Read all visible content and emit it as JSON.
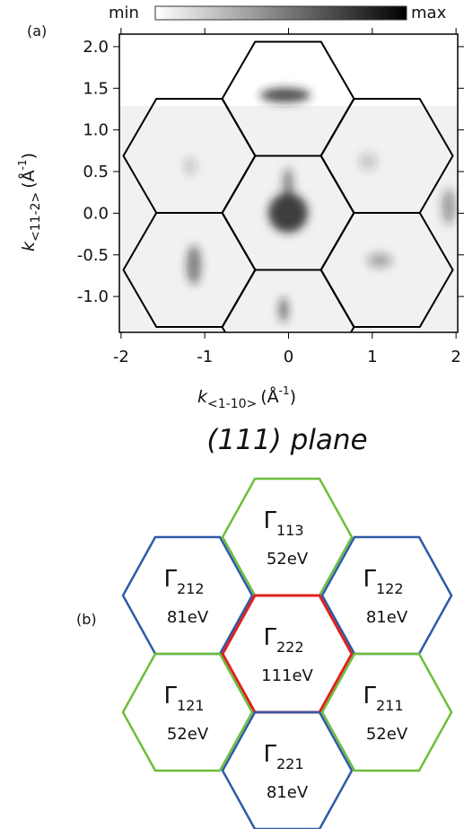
{
  "chart_data": {
    "type": "heatmap",
    "panel_label": "(a)",
    "title": "(111) plane",
    "colorbar": {
      "min_label": "min",
      "max_label": "max"
    },
    "x_label": {
      "symbol": "k",
      "subscript": "<1-10>",
      "unit": "(Å",
      "unit_sup": "-1",
      "unit_close": ")"
    },
    "y_label": {
      "symbol": "k",
      "subscript": "<11-2>",
      "unit": "(Å",
      "unit_sup": "-1",
      "unit_close": ")"
    },
    "xlim": [
      -2.02,
      2.02
    ],
    "ylim": [
      -1.43,
      2.15
    ],
    "xticks": [
      -2,
      -1,
      0,
      1,
      2
    ],
    "yticks": [
      {
        "value": 2,
        "label": "2.0"
      },
      {
        "value": 1.5,
        "label": "1.5"
      },
      {
        "value": 1,
        "label": "1.0"
      },
      {
        "value": 0.5,
        "label": "0.5"
      },
      {
        "value": 0,
        "label": "0.0"
      },
      {
        "value": -0.5,
        "label": "-0.5"
      },
      {
        "value": -1,
        "label": "-1.0"
      }
    ]
  },
  "diagram": {
    "panel_label": "(b)",
    "zones": [
      {
        "symbol": "Γ",
        "index": "113",
        "energy": "52eV",
        "color": "#6cbf3a"
      },
      {
        "symbol": "Γ",
        "index": "212",
        "energy": "81eV",
        "color": "#2f5aa8"
      },
      {
        "symbol": "Γ",
        "index": "122",
        "energy": "81eV",
        "color": "#2f5aa8"
      },
      {
        "symbol": "Γ",
        "index": "222",
        "energy": "111eV",
        "color": "#e02020"
      },
      {
        "symbol": "Γ",
        "index": "121",
        "energy": "52eV",
        "color": "#6cbf3a"
      },
      {
        "symbol": "Γ",
        "index": "211",
        "energy": "52eV",
        "color": "#6cbf3a"
      },
      {
        "symbol": "Γ",
        "index": "221",
        "energy": "81eV",
        "color": "#2f5aa8"
      }
    ]
  }
}
